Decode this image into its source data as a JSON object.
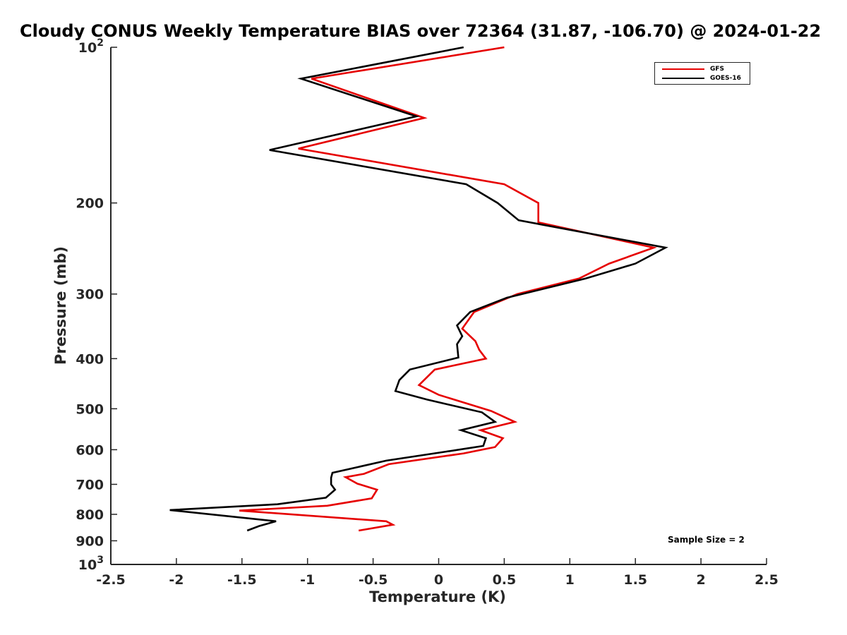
{
  "chart_data": {
    "type": "line",
    "title": "Cloudy CONUS Weekly Temperature BIAS over 72364 (31.87, -106.70) @ 2024-01-22",
    "xlabel": "Temperature (K)",
    "ylabel": "Pressure (mb)",
    "xlim": [
      -2.5,
      2.5
    ],
    "ylim": [
      100,
      1000
    ],
    "y_scale": "log",
    "y_reversed": true,
    "x_ticks": [
      "-2.5",
      "-2",
      "-1.5",
      "-1",
      "-0.5",
      "0",
      "0.5",
      "1",
      "1.5",
      "2",
      "2.5"
    ],
    "y_ticks": [
      {
        "value": 100,
        "base": "10",
        "exp": "2"
      },
      {
        "value": 200,
        "label": "200"
      },
      {
        "value": 300,
        "label": "300"
      },
      {
        "value": 400,
        "label": "400"
      },
      {
        "value": 500,
        "label": "500"
      },
      {
        "value": 600,
        "label": "600"
      },
      {
        "value": 700,
        "label": "700"
      },
      {
        "value": 800,
        "label": "800"
      },
      {
        "value": 900,
        "label": "900"
      },
      {
        "value": 1000,
        "base": "10",
        "exp": "3"
      }
    ],
    "legend_position": "top-right",
    "grid": false,
    "annotation": "Sample Size = 2",
    "series": [
      {
        "name": "GFS",
        "color": "#e60000",
        "points": [
          [
            0.5,
            100
          ],
          [
            -0.97,
            115
          ],
          [
            -0.11,
            137
          ],
          [
            -1.07,
            157
          ],
          [
            0.5,
            184
          ],
          [
            0.76,
            200
          ],
          [
            0.76,
            218
          ],
          [
            1.64,
            244
          ],
          [
            1.3,
            262
          ],
          [
            1.07,
            280
          ],
          [
            0.6,
            300
          ],
          [
            0.27,
            325
          ],
          [
            0.18,
            350
          ],
          [
            0.28,
            370
          ],
          [
            0.31,
            385
          ],
          [
            0.36,
            400
          ],
          [
            -0.03,
            420
          ],
          [
            -0.15,
            450
          ],
          [
            0.0,
            470
          ],
          [
            0.4,
            505
          ],
          [
            0.58,
            530
          ],
          [
            0.32,
            550
          ],
          [
            0.49,
            570
          ],
          [
            0.43,
            593
          ],
          [
            0.19,
            610
          ],
          [
            -0.38,
            640
          ],
          [
            -0.57,
            668
          ],
          [
            -0.71,
            678
          ],
          [
            -0.62,
            698
          ],
          [
            -0.47,
            717
          ],
          [
            -0.51,
            745
          ],
          [
            -0.85,
            770
          ],
          [
            -1.52,
            787
          ],
          [
            -0.4,
            825
          ],
          [
            -0.35,
            838
          ],
          [
            -0.61,
            860
          ]
        ]
      },
      {
        "name": "GOES-16",
        "color": "#000000",
        "points": [
          [
            0.19,
            100
          ],
          [
            -1.05,
            115
          ],
          [
            -0.17,
            136
          ],
          [
            -1.29,
            158
          ],
          [
            0.21,
            184
          ],
          [
            0.45,
            200
          ],
          [
            0.61,
            216
          ],
          [
            1.73,
            244
          ],
          [
            1.5,
            262
          ],
          [
            1.12,
            280
          ],
          [
            0.52,
            305
          ],
          [
            0.24,
            325
          ],
          [
            0.14,
            345
          ],
          [
            0.18,
            362
          ],
          [
            0.14,
            375
          ],
          [
            0.15,
            398
          ],
          [
            -0.22,
            420
          ],
          [
            -0.3,
            440
          ],
          [
            -0.33,
            462
          ],
          [
            -0.09,
            480
          ],
          [
            0.33,
            508
          ],
          [
            0.43,
            530
          ],
          [
            0.17,
            550
          ],
          [
            0.36,
            570
          ],
          [
            0.34,
            590
          ],
          [
            0.06,
            605
          ],
          [
            -0.4,
            630
          ],
          [
            -0.81,
            665
          ],
          [
            -0.82,
            680
          ],
          [
            -0.82,
            700
          ],
          [
            -0.79,
            717
          ],
          [
            -0.86,
            743
          ],
          [
            -1.23,
            765
          ],
          [
            -2.05,
            785
          ],
          [
            -1.24,
            825
          ],
          [
            -1.37,
            843
          ],
          [
            -1.46,
            860
          ]
        ]
      }
    ]
  }
}
